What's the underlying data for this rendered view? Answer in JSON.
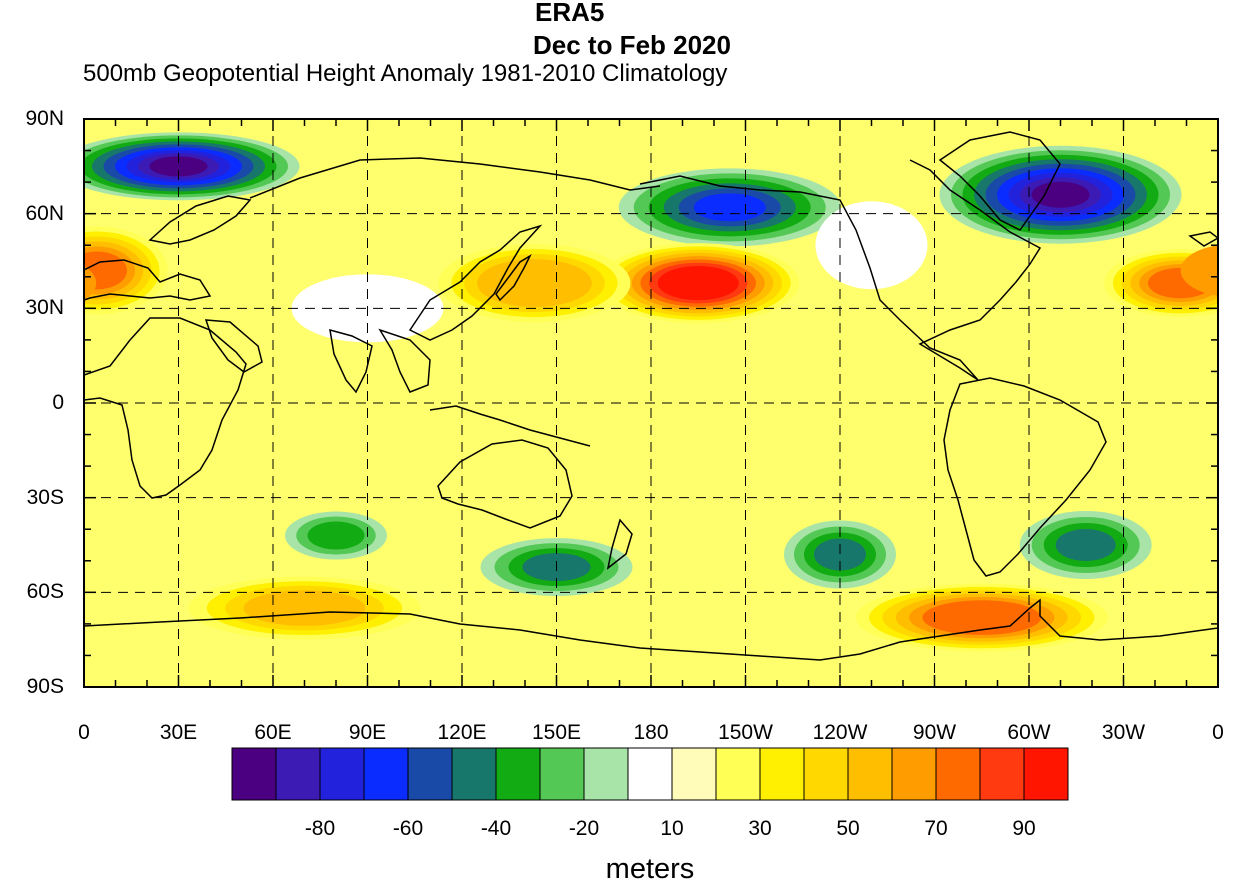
{
  "title": {
    "line1": "ERA5",
    "line2": "Dec to Feb 2020",
    "subtitle": "500mb Geopotential Height Anomaly  1981-2010 Climatology"
  },
  "map": {
    "projection": "cylindrical-equidistant",
    "center_longitude": 180,
    "lon_range": [
      0,
      360
    ],
    "lat_range": [
      -90,
      90
    ],
    "gridlines": "dashed",
    "lat_labels": [
      "90N",
      "60N",
      "30N",
      "0",
      "30S",
      "60S",
      "90S"
    ],
    "lon_labels": [
      "0",
      "30E",
      "60E",
      "90E",
      "120E",
      "150E",
      "180",
      "150W",
      "120W",
      "90W",
      "60W",
      "30W",
      "0"
    ]
  },
  "colorbar": {
    "labels": [
      "-80",
      "-60",
      "-40",
      "-20",
      "10",
      "30",
      "50",
      "70",
      "90"
    ],
    "colors": [
      "#4b0082",
      "#3c1ab4",
      "#2222dc",
      "#0a2cff",
      "#1a4aa8",
      "#17776a",
      "#13ab13",
      "#54c854",
      "#a8e4a8",
      "#ffffff",
      "#fffbb8",
      "#ffff55",
      "#ffef00",
      "#ffd800",
      "#ffbe00",
      "#ff9c00",
      "#ff6a00",
      "#ff3a10",
      "#ff1500"
    ],
    "units": "meters"
  },
  "chart_data": {
    "type": "heatmap",
    "title": "ERA5 Dec to Feb 2020",
    "subtitle": "500mb Geopotential Height Anomaly  1981-2010 Climatology",
    "variable": "500mb Geopotential Height Anomaly",
    "units": "meters",
    "xlim": [
      0,
      360
    ],
    "ylim": [
      -90,
      90
    ],
    "anomaly_centers": [
      {
        "lon": 30,
        "lat": 75,
        "value": -85
      },
      {
        "lon": 310,
        "lat": 66,
        "value": -90
      },
      {
        "lon": 205,
        "lat": 62,
        "value": -55
      },
      {
        "lon": 195,
        "lat": 38,
        "value": 95
      },
      {
        "lon": 4,
        "lat": 42,
        "value": 70
      },
      {
        "lon": 143,
        "lat": 38,
        "value": 55
      },
      {
        "lon": 348,
        "lat": 38,
        "value": 70
      },
      {
        "lon": 285,
        "lat": -68,
        "value": 75
      },
      {
        "lon": 70,
        "lat": -65,
        "value": 50
      },
      {
        "lon": 80,
        "lat": -42,
        "value": -25
      },
      {
        "lon": 150,
        "lat": -52,
        "value": -35
      },
      {
        "lon": 240,
        "lat": -48,
        "value": -35
      },
      {
        "lon": 318,
        "lat": -45,
        "value": -40
      },
      {
        "lon": 90,
        "lat": 30,
        "value": 0
      },
      {
        "lon": 250,
        "lat": 50,
        "value": 0
      }
    ]
  }
}
